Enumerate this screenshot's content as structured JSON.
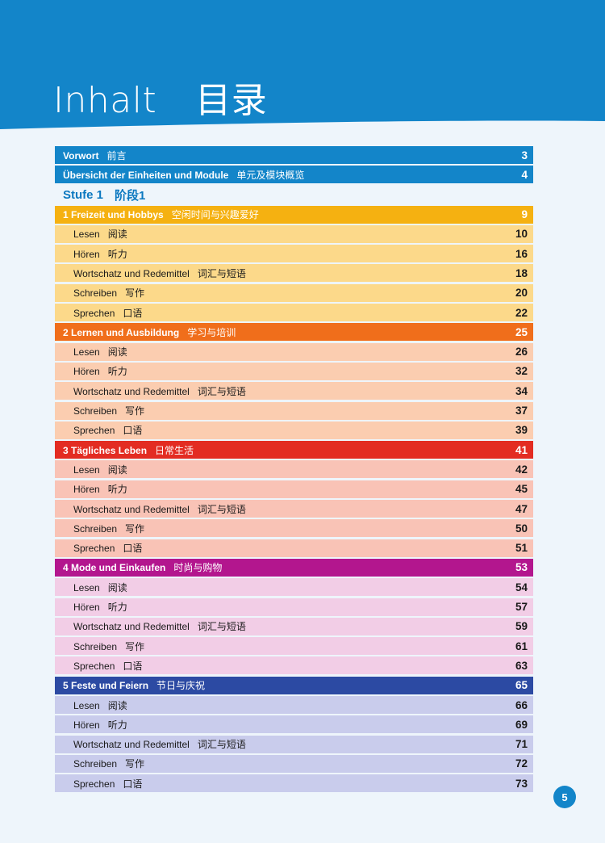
{
  "header": {
    "title_de": "Inhalt",
    "title_zh": "目录",
    "color": "#1385c9"
  },
  "toc": {
    "front": [
      {
        "label": "Vorwort",
        "zh": "前言",
        "page": "3"
      },
      {
        "label": "Übersicht der Einheiten und Module",
        "zh": "单元及模块概览",
        "page": "4"
      }
    ],
    "stufe": {
      "label": "Stufe 1",
      "zh": "阶段1"
    },
    "units": [
      {
        "label": "1 Freizeit und Hobbys",
        "zh": "空闲时间与兴趣爱好",
        "page": "9",
        "head_color": "#f5b111",
        "sub_color": "#fcd98a",
        "items": [
          {
            "label": "Lesen",
            "zh": "阅读",
            "page": "10"
          },
          {
            "label": "Hören",
            "zh": "听力",
            "page": "16"
          },
          {
            "label": "Wortschatz und Redemittel",
            "zh": "词汇与短语",
            "page": "18"
          },
          {
            "label": "Schreiben",
            "zh": "写作",
            "page": "20"
          },
          {
            "label": "Sprechen",
            "zh": "口语",
            "page": "22"
          }
        ]
      },
      {
        "label": "2 Lernen und Ausbildung",
        "zh": "学习与培训",
        "page": "25",
        "head_color": "#f06e1b",
        "sub_color": "#fbcdb0",
        "items": [
          {
            "label": "Lesen",
            "zh": "阅读",
            "page": "26"
          },
          {
            "label": "Hören",
            "zh": "听力",
            "page": "32"
          },
          {
            "label": "Wortschatz und Redemittel",
            "zh": "词汇与短语",
            "page": "34"
          },
          {
            "label": "Schreiben",
            "zh": "写作",
            "page": "37"
          },
          {
            "label": "Sprechen",
            "zh": "口语",
            "page": "39"
          }
        ]
      },
      {
        "label": "3 Tägliches Leben",
        "zh": "日常生活",
        "page": "41",
        "head_color": "#e32c22",
        "sub_color": "#f9c3b6",
        "items": [
          {
            "label": "Lesen",
            "zh": "阅读",
            "page": "42"
          },
          {
            "label": "Hören",
            "zh": "听力",
            "page": "45"
          },
          {
            "label": "Wortschatz und Redemittel",
            "zh": "词汇与短语",
            "page": "47"
          },
          {
            "label": "Schreiben",
            "zh": "写作",
            "page": "50"
          },
          {
            "label": "Sprechen",
            "zh": "口语",
            "page": "51"
          }
        ]
      },
      {
        "label": "4 Mode und Einkaufen",
        "zh": "时尚与购物",
        "page": "53",
        "head_color": "#b3168e",
        "sub_color": "#f2cde6",
        "items": [
          {
            "label": "Lesen",
            "zh": "阅读",
            "page": "54"
          },
          {
            "label": "Hören",
            "zh": "听力",
            "page": "57"
          },
          {
            "label": "Wortschatz und Redemittel",
            "zh": "词汇与短语",
            "page": "59"
          },
          {
            "label": "Schreiben",
            "zh": "写作",
            "page": "61"
          },
          {
            "label": "Sprechen",
            "zh": "口语",
            "page": "63"
          }
        ]
      },
      {
        "label": "5 Feste und Feiern",
        "zh": "节日与庆祝",
        "page": "65",
        "head_color": "#2c4aa3",
        "sub_color": "#c9ccec",
        "items": [
          {
            "label": "Lesen",
            "zh": "阅读",
            "page": "66"
          },
          {
            "label": "Hören",
            "zh": "听力",
            "page": "69"
          },
          {
            "label": "Wortschatz und Redemittel",
            "zh": "词汇与短语",
            "page": "71"
          },
          {
            "label": "Schreiben",
            "zh": "写作",
            "page": "72"
          },
          {
            "label": "Sprechen",
            "zh": "口语",
            "page": "73"
          }
        ]
      }
    ]
  },
  "page_number": "5"
}
